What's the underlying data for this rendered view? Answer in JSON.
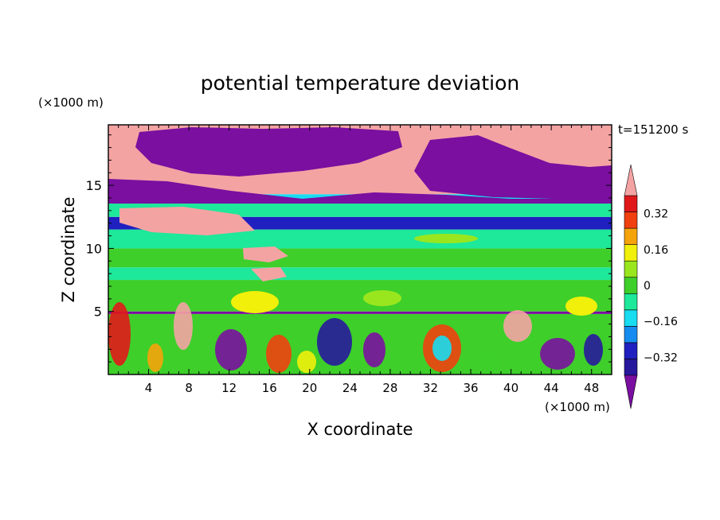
{
  "chart_data": {
    "type": "heatmap",
    "title": "potential temperature deviation",
    "xlabel": "X coordinate",
    "ylabel": "Z coordinate",
    "x_unit": "(×1000 m)",
    "y_unit": "(×1000 m)",
    "time_label": "t=151200 s",
    "xlim": [
      0,
      50
    ],
    "ylim": [
      0,
      19.8
    ],
    "x_ticks": [
      4,
      8,
      12,
      16,
      20,
      24,
      28,
      32,
      36,
      40,
      44,
      48
    ],
    "y_ticks": [
      5,
      10,
      15
    ],
    "colorbar": {
      "levels": [
        -0.4,
        -0.32,
        -0.24,
        -0.16,
        -0.08,
        0,
        0.08,
        0.16,
        0.24,
        0.32,
        0.4
      ],
      "tick_labels": [
        "0.32",
        "0.16",
        "0",
        "−0.16",
        "−0.32"
      ],
      "tick_values": [
        0.32,
        0.16,
        0,
        -0.16,
        -0.32
      ],
      "under_color": "#7a0fa0",
      "over_color": "#f4a3a3",
      "colors": [
        "#27189c",
        "#2020c0",
        "#168cf0",
        "#18dcf0",
        "#1ee89a",
        "#3ecf2a",
        "#9ae61e",
        "#f0f00a",
        "#f5a30a",
        "#f04010",
        "#e0181a"
      ]
    },
    "bands": [
      {
        "z0": 0,
        "z1": 4.8,
        "value": 0.05
      },
      {
        "z0": 4.8,
        "z1": 5.0,
        "value": -0.45
      },
      {
        "z0": 5.0,
        "z1": 7.5,
        "value": 0.06
      },
      {
        "z0": 7.5,
        "z1": 8.5,
        "value": -0.05
      },
      {
        "z0": 8.5,
        "z1": 10.0,
        "value": 0.05
      },
      {
        "z0": 10.0,
        "z1": 11.5,
        "value": -0.02
      },
      {
        "z0": 11.5,
        "z1": 12.5,
        "value": -0.25
      },
      {
        "z0": 12.5,
        "z1": 13.8,
        "value": -0.05
      },
      {
        "z0": 13.8,
        "z1": 14.3,
        "value": -0.15
      },
      {
        "z0": 14.3,
        "z1": 19.8,
        "value": 0.45
      }
    ]
  }
}
